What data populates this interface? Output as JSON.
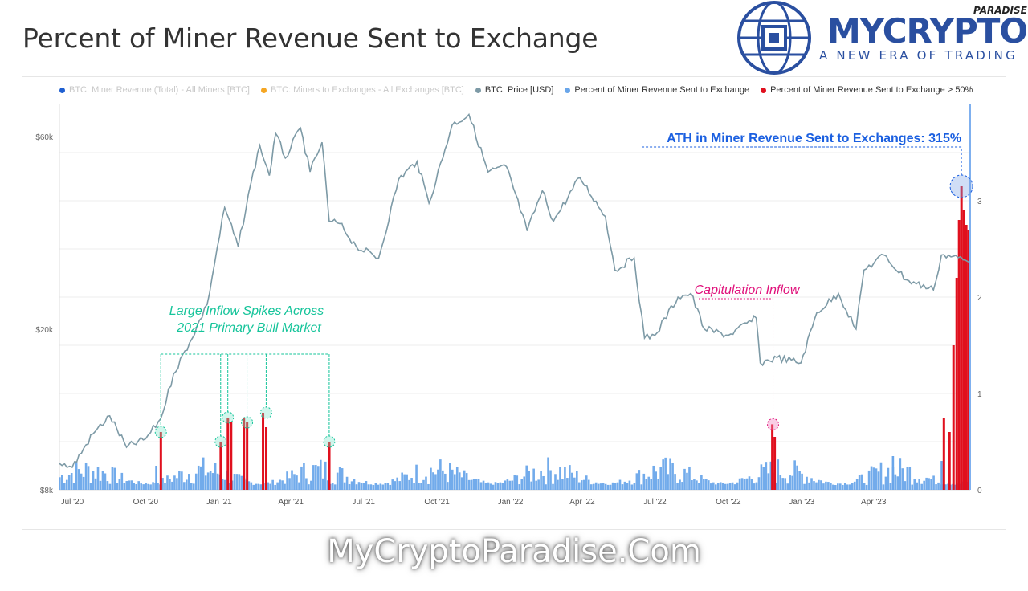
{
  "page": {
    "title": "Percent of Miner Revenue Sent to Exchange",
    "logo": {
      "brand": "MYCRYPTO",
      "superscript": "PARADISE",
      "tagline": "A NEW ERA OF TRADING"
    },
    "watermark": "MyCryptoParadise.Com"
  },
  "legend": [
    {
      "label": "BTC: Miner Revenue (Total) - All Miners [BTC]",
      "color": "#1f5fd1",
      "muted": true
    },
    {
      "label": "BTC: Miners to Exchanges - All Exchanges [BTC]",
      "color": "#f5a623",
      "muted": true
    },
    {
      "label": "BTC: Price [USD]",
      "color": "#7d9aa6",
      "muted": false
    },
    {
      "label": "Percent of Miner Revenue Sent to Exchange",
      "color": "#6aa6ea",
      "muted": false
    },
    {
      "label": "Percent of Miner Revenue Sent to Exchange > 50%",
      "color": "#e0101e",
      "muted": false
    }
  ],
  "annotations": {
    "ath": "ATH in Miner Revenue Sent to Exchanges: 315%",
    "capitulation": "Capitulation Inflow",
    "spikes_line1": "Large Inflow Spikes Across",
    "spikes_line2": "2021 Primary Bull Market"
  },
  "colors": {
    "price": "#7d9aa6",
    "bars": "#6aa6ea",
    "bars_high": "#e0101e",
    "ath": "#1a5fe0",
    "capitulation": "#e0107a",
    "spikes": "#15c49a"
  },
  "chart_data": {
    "type": "line",
    "x_ticks": [
      "Jul '20",
      "Oct '20",
      "Jan '21",
      "Apr '21",
      "Jul '21",
      "Oct '21",
      "Jan '22",
      "Apr '22",
      "Jul '22",
      "Oct '22",
      "Jan '23",
      "Apr '23"
    ],
    "x_range": [
      "2020-06-15",
      "2023-07-31"
    ],
    "y_left": {
      "scale": "log",
      "ticks": [
        "$8k",
        "$20k",
        "$60k"
      ],
      "range": [
        8000,
        72000
      ]
    },
    "y_right": {
      "scale": "linear",
      "ticks": [
        "0",
        "1",
        "2",
        "3"
      ],
      "range": [
        0,
        4
      ]
    },
    "grid": true,
    "series": [
      {
        "name": "BTC: Price [USD]",
        "kind": "line",
        "points": [
          [
            "2020-06-15",
            9300
          ],
          [
            "2020-07-01",
            9100
          ],
          [
            "2020-07-27",
            11000
          ],
          [
            "2020-08-17",
            12200
          ],
          [
            "2020-09-07",
            10200
          ],
          [
            "2020-10-01",
            10700
          ],
          [
            "2020-10-20",
            12000
          ],
          [
            "2020-11-05",
            15500
          ],
          [
            "2020-11-25",
            18500
          ],
          [
            "2020-12-17",
            23000
          ],
          [
            "2021-01-08",
            40000
          ],
          [
            "2021-01-25",
            32000
          ],
          [
            "2021-02-10",
            46000
          ],
          [
            "2021-02-21",
            57000
          ],
          [
            "2021-03-05",
            48000
          ],
          [
            "2021-03-13",
            61000
          ],
          [
            "2021-03-25",
            53000
          ],
          [
            "2021-04-13",
            63000
          ],
          [
            "2021-04-25",
            49000
          ],
          [
            "2021-05-10",
            58000
          ],
          [
            "2021-05-19",
            37000
          ],
          [
            "2021-06-01",
            36500
          ],
          [
            "2021-06-22",
            32000
          ],
          [
            "2021-07-20",
            30000
          ],
          [
            "2021-08-14",
            47000
          ],
          [
            "2021-09-06",
            52000
          ],
          [
            "2021-09-21",
            41000
          ],
          [
            "2021-10-20",
            64000
          ],
          [
            "2021-11-10",
            68000
          ],
          [
            "2021-12-04",
            49000
          ],
          [
            "2021-12-27",
            50500
          ],
          [
            "2022-01-22",
            35000
          ],
          [
            "2022-02-10",
            44000
          ],
          [
            "2022-02-24",
            37000
          ],
          [
            "2022-03-29",
            47500
          ],
          [
            "2022-04-30",
            38000
          ],
          [
            "2022-05-12",
            28000
          ],
          [
            "2022-06-05",
            30000
          ],
          [
            "2022-06-18",
            19000
          ],
          [
            "2022-07-01",
            19300
          ],
          [
            "2022-07-30",
            24000
          ],
          [
            "2022-08-15",
            24500
          ],
          [
            "2022-09-01",
            20000
          ],
          [
            "2022-10-01",
            19300
          ],
          [
            "2022-11-05",
            21300
          ],
          [
            "2022-11-10",
            16500
          ],
          [
            "2022-12-01",
            17000
          ],
          [
            "2022-12-31",
            16500
          ],
          [
            "2023-01-20",
            22000
          ],
          [
            "2023-02-16",
            24500
          ],
          [
            "2023-03-10",
            20000
          ],
          [
            "2023-03-20",
            28000
          ],
          [
            "2023-04-14",
            30500
          ],
          [
            "2023-05-12",
            26500
          ],
          [
            "2023-06-15",
            25000
          ],
          [
            "2023-06-25",
            30500
          ],
          [
            "2023-07-10",
            30300
          ],
          [
            "2023-07-31",
            29200
          ]
        ]
      },
      {
        "name": "Percent of Miner Revenue Sent to Exchange",
        "kind": "bar",
        "baseline_range": [
          0.05,
          0.35
        ],
        "spikes": [
          {
            "date": "2023-04-25",
            "value": 0.35
          },
          {
            "date": "2023-06-25",
            "value": 0.3
          },
          {
            "date": "2020-10-14",
            "value": 0.25
          }
        ]
      },
      {
        "name": "Percent of Miner Revenue Sent to Exchange > 50%",
        "kind": "bar",
        "spikes": [
          {
            "date": "2020-10-20",
            "value": 0.6
          },
          {
            "date": "2021-01-03",
            "value": 0.5
          },
          {
            "date": "2021-01-12",
            "value": 0.75
          },
          {
            "date": "2021-01-16",
            "value": 0.7
          },
          {
            "date": "2021-02-01",
            "value": 0.75
          },
          {
            "date": "2021-02-05",
            "value": 0.7
          },
          {
            "date": "2021-02-25",
            "value": 0.8
          },
          {
            "date": "2021-03-01",
            "value": 0.65
          },
          {
            "date": "2021-05-19",
            "value": 0.5
          },
          {
            "date": "2022-11-25",
            "value": 0.68
          },
          {
            "date": "2022-11-28",
            "value": 0.55
          },
          {
            "date": "2023-06-28",
            "value": 0.75
          },
          {
            "date": "2023-07-05",
            "value": 0.6
          },
          {
            "date": "2023-07-10",
            "value": 1.5
          },
          {
            "date": "2023-07-14",
            "value": 2.2
          },
          {
            "date": "2023-07-17",
            "value": 2.8
          },
          {
            "date": "2023-07-20",
            "value": 3.15
          },
          {
            "date": "2023-07-23",
            "value": 2.9
          },
          {
            "date": "2023-07-26",
            "value": 2.75
          },
          {
            "date": "2023-07-29",
            "value": 2.7
          }
        ]
      }
    ]
  }
}
